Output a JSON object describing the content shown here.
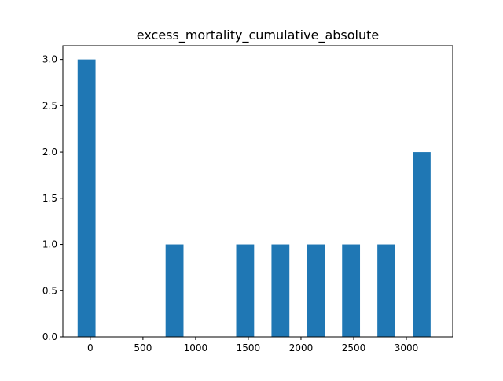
{
  "chart_data": {
    "type": "bar",
    "title": "excess_mortality_cumulative_absolute",
    "xlabel": "",
    "ylabel": "",
    "xlim": [
      -260,
      3440
    ],
    "ylim": [
      0,
      3.15
    ],
    "bar_width_data_units": 170,
    "bars": [
      {
        "x": -35,
        "value": 3
      },
      {
        "x": 300,
        "value": 0
      },
      {
        "x": 635,
        "value": 0
      },
      {
        "x": 800,
        "value": 1
      },
      {
        "x": 1135,
        "value": 0
      },
      {
        "x": 1470,
        "value": 1
      },
      {
        "x": 1805,
        "value": 1
      },
      {
        "x": 2140,
        "value": 1
      },
      {
        "x": 2475,
        "value": 1
      },
      {
        "x": 2810,
        "value": 1
      },
      {
        "x": 3145,
        "value": 2
      }
    ],
    "x_ticks": [
      {
        "value": 0,
        "label": "0"
      },
      {
        "value": 500,
        "label": "500"
      },
      {
        "value": 1000,
        "label": "1000"
      },
      {
        "value": 1500,
        "label": "1500"
      },
      {
        "value": 2000,
        "label": "2000"
      },
      {
        "value": 2500,
        "label": "2500"
      },
      {
        "value": 3000,
        "label": "3000"
      }
    ],
    "y_ticks": [
      {
        "value": 0,
        "label": "0.0"
      },
      {
        "value": 0.5,
        "label": "0.5"
      },
      {
        "value": 1.0,
        "label": "1.0"
      },
      {
        "value": 1.5,
        "label": "1.5"
      },
      {
        "value": 2.0,
        "label": "2.0"
      },
      {
        "value": 2.5,
        "label": "2.5"
      },
      {
        "value": 3.0,
        "label": "3.0"
      }
    ],
    "grid": false,
    "legend": "none",
    "bar_color": "#1f77b4"
  }
}
